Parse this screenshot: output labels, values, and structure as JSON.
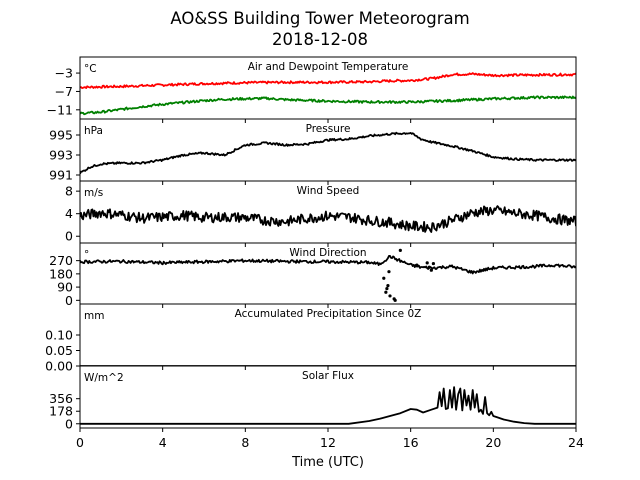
{
  "figure": {
    "title_line1": "AO&SS Building Tower Meteorogram",
    "title_line2": "2018-12-08",
    "xlabel": "Time (UTC)"
  },
  "chart_data": [
    {
      "id": "temp",
      "type": "line",
      "title": "Air and Dewpoint Temperature",
      "unit": "°C",
      "ylim": [
        -13,
        0.5
      ],
      "yticks": [
        -3,
        -7,
        -11
      ],
      "yticklabels": [
        "−3",
        "−7",
        "−11"
      ],
      "series": [
        {
          "color": "#ff0000",
          "noise": 0.25,
          "x": [
            0,
            2,
            4,
            6,
            8,
            10,
            12,
            14,
            15,
            16,
            17,
            17.5,
            18,
            19,
            20,
            22,
            24
          ],
          "y": [
            -6.1,
            -5.9,
            -5.6,
            -5.3,
            -5.1,
            -5.0,
            -5.0,
            -4.9,
            -4.7,
            -4.6,
            -4.2,
            -3.8,
            -3.3,
            -3.2,
            -3.5,
            -3.4,
            -3.3
          ]
        },
        {
          "color": "#008000",
          "noise": 0.25,
          "x": [
            0,
            1,
            2,
            3,
            4,
            5,
            6,
            7,
            8,
            9,
            10,
            12,
            14,
            16,
            18,
            20,
            22,
            24
          ],
          "y": [
            -11.8,
            -11.5,
            -10.9,
            -10.3,
            -9.8,
            -9.4,
            -9.0,
            -8.7,
            -8.6,
            -8.5,
            -8.8,
            -9.1,
            -9.3,
            -9.3,
            -9.0,
            -8.6,
            -8.3,
            -8.3
          ]
        }
      ]
    },
    {
      "id": "press",
      "type": "line",
      "title": "Pressure",
      "unit": "hPa",
      "ylim": [
        990.4,
        996.6
      ],
      "yticks": [
        995,
        993,
        991
      ],
      "yticklabels": [
        "995",
        "993",
        "991"
      ],
      "series": [
        {
          "color": "#000000",
          "noise": 0.1,
          "x": [
            0,
            0.5,
            1,
            2,
            3,
            4,
            5,
            6,
            7,
            8,
            9,
            10,
            11,
            12,
            13,
            14,
            15,
            16,
            16.5,
            17,
            18,
            19,
            20,
            21,
            22,
            23,
            24
          ],
          "y": [
            991.2,
            991.8,
            992.1,
            992.2,
            992.2,
            992.5,
            993.0,
            993.2,
            993.0,
            994.0,
            994.2,
            994.0,
            994.1,
            994.5,
            994.6,
            994.9,
            995.1,
            995.2,
            994.6,
            994.3,
            993.9,
            993.4,
            992.8,
            992.6,
            992.5,
            992.5,
            992.5
          ]
        }
      ]
    },
    {
      "id": "wspd",
      "type": "line",
      "title": "Wind Speed",
      "unit": "m/s",
      "ylim": [
        -1.2,
        9.8
      ],
      "yticks": [
        8,
        4,
        0
      ],
      "yticklabels": [
        "8",
        "4",
        "0"
      ],
      "series": [
        {
          "color": "#000000",
          "noise": 0.9,
          "x": [
            0,
            1,
            2,
            3,
            4,
            5,
            6,
            7,
            8,
            9,
            10,
            11,
            12,
            13,
            14,
            15,
            16,
            17,
            18,
            19,
            20,
            21,
            22,
            23,
            24
          ],
          "y": [
            3.6,
            4.2,
            3.8,
            3.2,
            3.4,
            3.7,
            3.3,
            3.4,
            3.3,
            2.8,
            2.6,
            3.2,
            3.6,
            3.4,
            2.8,
            2.4,
            1.8,
            1.6,
            2.8,
            4.2,
            4.6,
            4.1,
            3.7,
            3.1,
            2.6
          ]
        }
      ]
    },
    {
      "id": "wdir",
      "type": "line",
      "title": "Wind Direction",
      "unit": "°",
      "ylim": [
        -25,
        390
      ],
      "yticks": [
        270,
        180,
        90,
        0
      ],
      "yticklabels": [
        "270",
        "180",
        "90",
        "0"
      ],
      "series": [
        {
          "color": "#000000",
          "noise": 10,
          "x": [
            0,
            2,
            4,
            6,
            8,
            10,
            12,
            14,
            14.5,
            15,
            15.3,
            16,
            16.5,
            17,
            18,
            18.5,
            19,
            20,
            21,
            22,
            23,
            24
          ],
          "y": [
            262,
            265,
            255,
            262,
            270,
            265,
            262,
            258,
            245,
            300,
            280,
            240,
            225,
            220,
            230,
            210,
            190,
            220,
            225,
            230,
            240,
            225
          ]
        }
      ],
      "scatter": [
        {
          "x": 14.8,
          "y": 55
        },
        {
          "x": 14.85,
          "y": 80
        },
        {
          "x": 14.9,
          "y": 100
        },
        {
          "x": 14.7,
          "y": 150
        },
        {
          "x": 14.95,
          "y": 195
        },
        {
          "x": 15.0,
          "y": 30
        },
        {
          "x": 15.2,
          "y": 10
        },
        {
          "x": 15.25,
          "y": 0
        },
        {
          "x": 16.3,
          "y": 240
        },
        {
          "x": 16.8,
          "y": 255
        },
        {
          "x": 16.9,
          "y": 225
        },
        {
          "x": 17.0,
          "y": 205
        },
        {
          "x": 17.1,
          "y": 250
        },
        {
          "x": 15.5,
          "y": 340
        }
      ]
    },
    {
      "id": "precip",
      "type": "line",
      "title": "Accumulated Precipitation Since 0Z",
      "unit": "mm",
      "ylim": [
        0,
        0.2
      ],
      "yticks": [
        0.1,
        0.05,
        0.0
      ],
      "yticklabels": [
        "0.10",
        "0.05",
        "0.00"
      ],
      "series": [
        {
          "color": "#000000",
          "noise": 0,
          "x": [
            0,
            24
          ],
          "y": [
            0,
            0
          ]
        }
      ]
    },
    {
      "id": "solar",
      "type": "line",
      "title": "Solar Flux",
      "unit": "W/m^2",
      "ylim": [
        -60,
        820
      ],
      "yticks": [
        356,
        178,
        0
      ],
      "yticklabels": [
        "356",
        "178",
        "0"
      ],
      "series": [
        {
          "color": "#000000",
          "noise": 0,
          "x": [
            0,
            13,
            14,
            14.5,
            15,
            15.5,
            16,
            16.3,
            16.6,
            17,
            17.3,
            17.4,
            17.5,
            17.6,
            17.7,
            17.8,
            17.9,
            18.0,
            18.1,
            18.2,
            18.3,
            18.4,
            18.5,
            18.6,
            18.7,
            18.8,
            18.9,
            19.0,
            19.1,
            19.2,
            19.3,
            19.4,
            19.5,
            19.6,
            19.7,
            19.8,
            19.9,
            20.0,
            20.2,
            20.5,
            21,
            21.5,
            22,
            24
          ],
          "y": [
            0,
            0,
            40,
            70,
            110,
            150,
            210,
            200,
            160,
            200,
            230,
            450,
            250,
            500,
            210,
            220,
            480,
            230,
            520,
            200,
            420,
            500,
            190,
            480,
            260,
            400,
            200,
            480,
            230,
            420,
            170,
            200,
            140,
            380,
            150,
            120,
            170,
            110,
            90,
            60,
            30,
            10,
            0,
            0
          ]
        }
      ]
    }
  ],
  "xaxis": {
    "xlim": [
      0,
      24
    ],
    "ticks": [
      0,
      4,
      8,
      12,
      16,
      20,
      24
    ],
    "ticklabels": [
      "0",
      "4",
      "8",
      "12",
      "16",
      "20",
      "24"
    ]
  }
}
